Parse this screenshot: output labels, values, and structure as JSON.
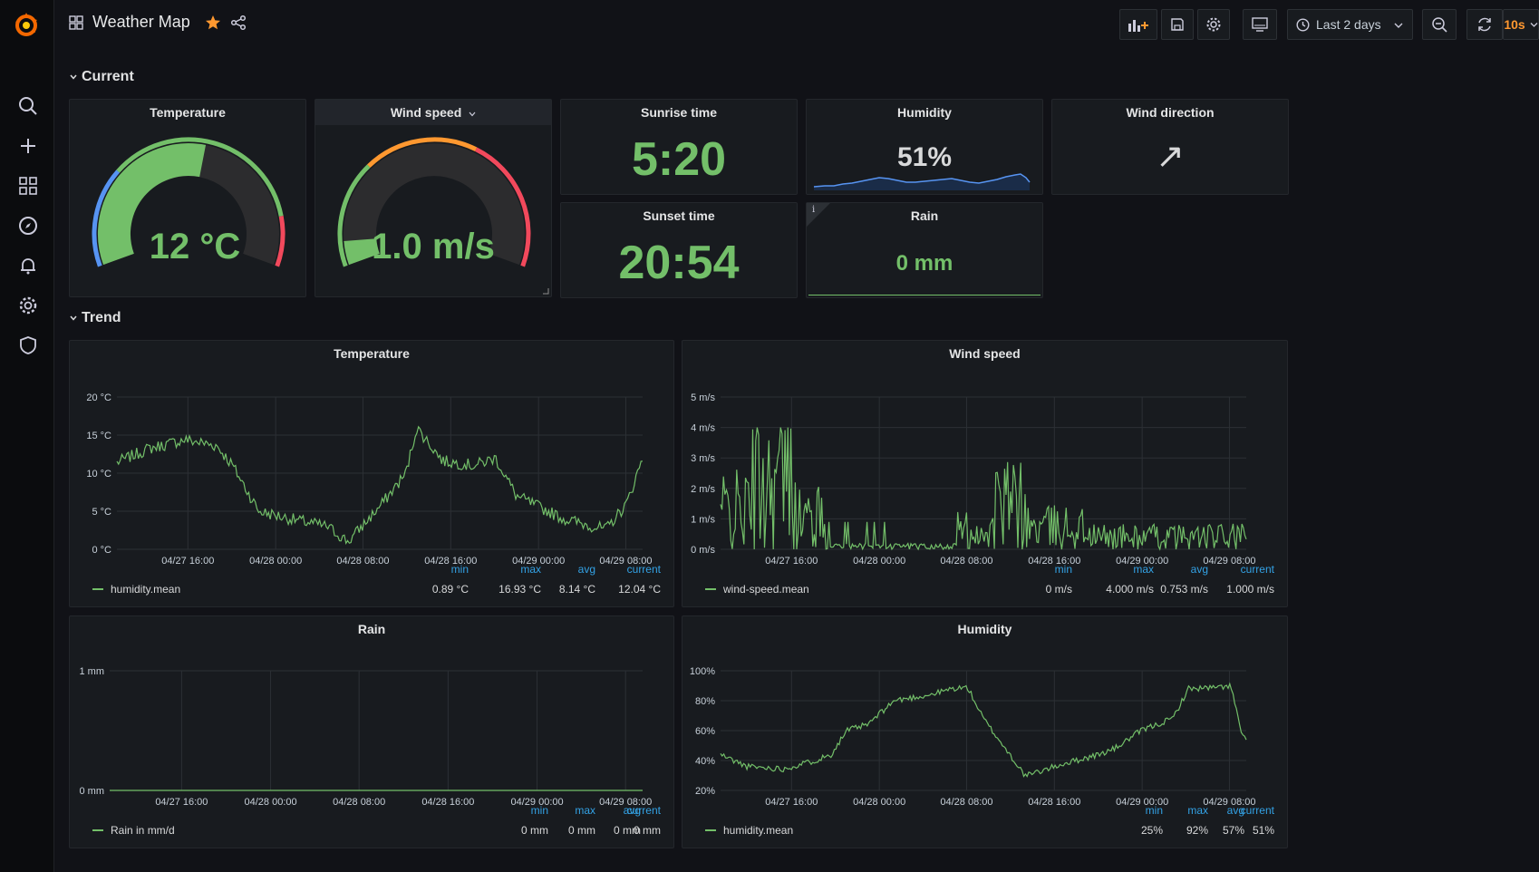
{
  "header": {
    "title": "Weather Map",
    "time_range": "Last 2 days",
    "refresh_interval": "10s"
  },
  "rows": {
    "current": "Current",
    "trend": "Trend"
  },
  "current": {
    "temperature": {
      "title": "Temperature",
      "value": "12 °C",
      "fraction": 0.55
    },
    "wind_speed": {
      "title": "Wind speed",
      "value": "1.0 m/s",
      "fraction": 0.07
    },
    "sunrise": {
      "title": "Sunrise time",
      "value": "5:20"
    },
    "sunset": {
      "title": "Sunset time",
      "value": "20:54"
    },
    "humidity": {
      "title": "Humidity",
      "value": "51%"
    },
    "wind_direction": {
      "title": "Wind direction",
      "arrow": "↗"
    },
    "rain": {
      "title": "Rain",
      "value": "0 mm",
      "info": "i"
    }
  },
  "trend": {
    "temperature": {
      "title": "Temperature",
      "y_ticks": [
        "20 °C",
        "15 °C",
        "10 °C",
        "5 °C",
        "0 °C"
      ],
      "x_ticks": [
        "04/27 16:00",
        "04/28 00:00",
        "04/28 08:00",
        "04/28 16:00",
        "04/29 00:00",
        "04/29 08:00"
      ],
      "legend": {
        "name": "humidity.mean",
        "min": "0.89 °C",
        "max": "16.93 °C",
        "avg": "8.14 °C",
        "current": "12.04 °C"
      }
    },
    "wind_speed": {
      "title": "Wind speed",
      "y_ticks": [
        "5 m/s",
        "4 m/s",
        "3 m/s",
        "2 m/s",
        "1 m/s",
        "0 m/s"
      ],
      "x_ticks": [
        "04/27 16:00",
        "04/28 00:00",
        "04/28 08:00",
        "04/28 16:00",
        "04/29 00:00",
        "04/29 08:00"
      ],
      "legend": {
        "name": "wind-speed.mean",
        "min": "0 m/s",
        "max": "4.000 m/s",
        "avg": "0.753 m/s",
        "current": "1.000 m/s"
      }
    },
    "rain": {
      "title": "Rain",
      "y_ticks": [
        "1 mm",
        "0 mm"
      ],
      "x_ticks": [
        "04/27 16:00",
        "04/28 00:00",
        "04/28 08:00",
        "04/28 16:00",
        "04/29 00:00",
        "04/29 08:00"
      ],
      "legend": {
        "name": "Rain in mm/d",
        "min": "0 mm",
        "max": "0 mm",
        "avg": "0 mm",
        "current": "0 mm"
      }
    },
    "humidity": {
      "title": "Humidity",
      "y_ticks": [
        "100%",
        "80%",
        "60%",
        "40%",
        "20%"
      ],
      "x_ticks": [
        "04/27 16:00",
        "04/28 00:00",
        "04/28 08:00",
        "04/28 16:00",
        "04/29 00:00",
        "04/29 08:00"
      ],
      "legend": {
        "name": "humidity.mean",
        "min": "25%",
        "max": "92%",
        "avg": "57%",
        "current": "51%"
      }
    }
  },
  "legend_headers": {
    "min": "min",
    "max": "max",
    "avg": "avg",
    "current": "current"
  },
  "colors": {
    "green": "#73bf69",
    "blue": "#5794f2",
    "red": "#f2495c",
    "orange": "#ff9830",
    "accent": "#ff780a"
  }
}
